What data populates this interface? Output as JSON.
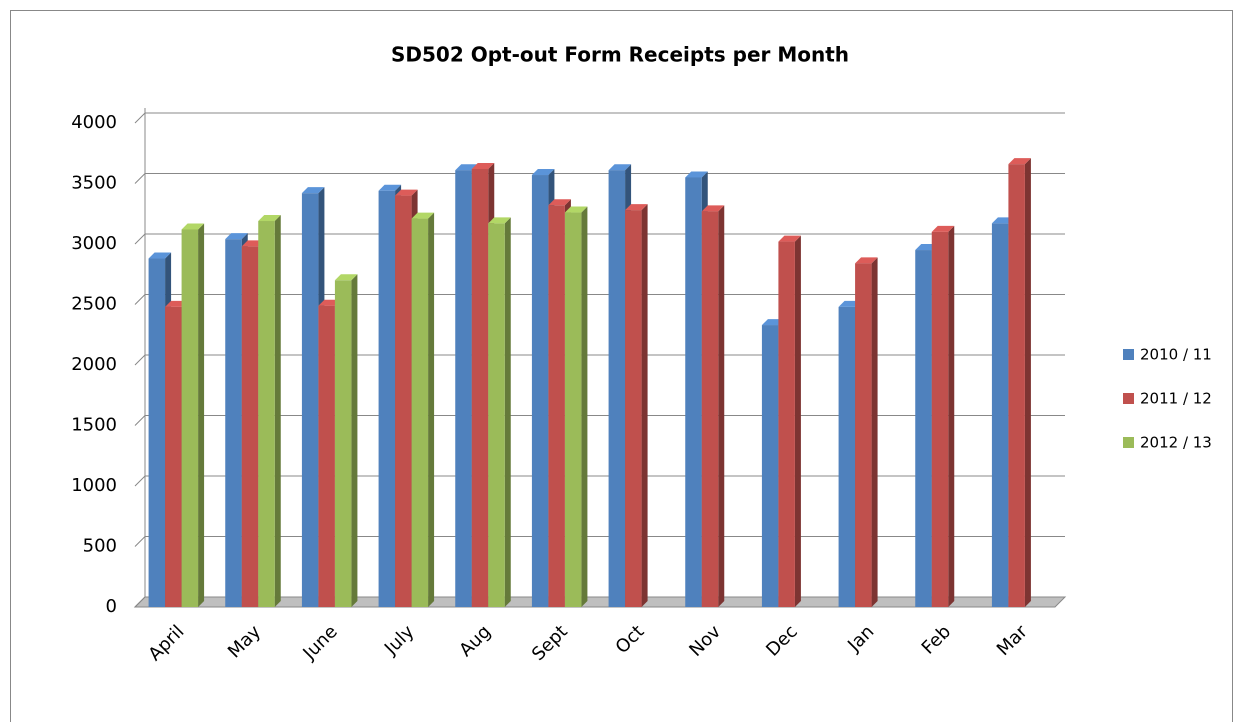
{
  "chart_data": {
    "type": "bar",
    "title": "SD502 Opt-out Form Receipts per Month",
    "categories": [
      "April",
      "May",
      "June",
      "July",
      "Aug",
      "Sept",
      "Oct",
      "Nov",
      "Dec",
      "Jan",
      "Feb",
      "Mar"
    ],
    "series": [
      {
        "name": "2010 / 11",
        "color": "#4f81bd",
        "values": [
          2880,
          3040,
          3420,
          3440,
          3610,
          3570,
          3610,
          3550,
          2330,
          2480,
          2950,
          3170
        ]
      },
      {
        "name": "2011 / 12",
        "color": "#c0504d",
        "values": [
          2480,
          2980,
          2490,
          3400,
          3620,
          3320,
          3280,
          3270,
          3020,
          2840,
          3100,
          3660
        ]
      },
      {
        "name": "2012 / 13",
        "color": "#9bbb59",
        "values": [
          3120,
          3190,
          2700,
          3210,
          3170,
          3260,
          null,
          null,
          null,
          null,
          null,
          null
        ]
      }
    ],
    "ylim": [
      0,
      4000
    ],
    "yticks": [
      0,
      500,
      1000,
      1500,
      2000,
      2500,
      3000,
      3500,
      4000
    ],
    "grid": true,
    "legend": "right"
  }
}
